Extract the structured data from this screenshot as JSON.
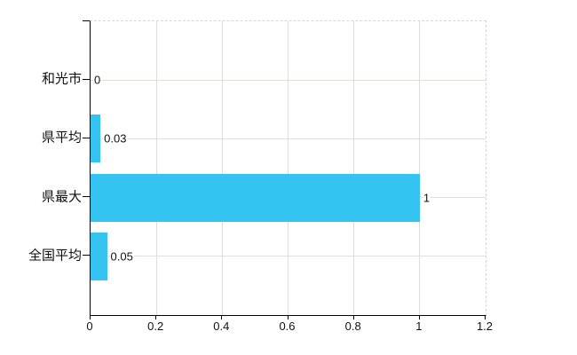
{
  "chart_data": {
    "type": "bar",
    "orientation": "horizontal",
    "title": "",
    "xlabel": "",
    "ylabel": "",
    "categories": [
      "和光市",
      "県平均",
      "県最大",
      "全国平均"
    ],
    "values": [
      0,
      0.03,
      1,
      0.05
    ],
    "value_labels": [
      "0",
      "0.03",
      "1",
      "0.05"
    ],
    "xlim": [
      0,
      1.2
    ],
    "x_ticks": [
      0,
      0.2,
      0.4,
      0.6,
      0.8,
      1,
      1.2
    ],
    "x_tick_labels": [
      "0",
      "0.2",
      "0.4",
      "0.6",
      "0.8",
      "1",
      "1.2"
    ],
    "grid": true,
    "legend": false,
    "colors": {
      "bar": "#35c4f2",
      "axis": "#000000",
      "grid_vertical": "#dcdcdc",
      "grid_horizontal": "#dae2da",
      "border_dashed": "#d6d6d6",
      "text": "#111111",
      "background": "#ffffff"
    }
  }
}
